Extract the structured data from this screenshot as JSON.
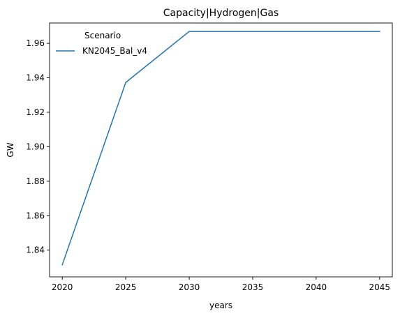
{
  "chart_data": {
    "type": "line",
    "title": "Capacity|Hydrogen|Gas",
    "xlabel": "years",
    "ylabel": "GW",
    "x": [
      2020,
      2025,
      2030,
      2035,
      2040,
      2045
    ],
    "series": [
      {
        "name": "KN2045_Bal_v4",
        "color": "#1f77b4",
        "values": [
          1.8315,
          1.9373,
          1.9669,
          1.9669,
          1.9669,
          1.9669
        ]
      }
    ],
    "xlim": [
      2019,
      2046
    ],
    "ylim": [
      1.8245,
      1.9718
    ],
    "xticks": [
      2020,
      2025,
      2030,
      2035,
      2040,
      2045
    ],
    "yticks": [
      1.84,
      1.86,
      1.88,
      1.9,
      1.92,
      1.94,
      1.96
    ],
    "ytick_labels": [
      "1.84",
      "1.86",
      "1.88",
      "1.90",
      "1.92",
      "1.94",
      "1.96"
    ],
    "legend": {
      "title": "Scenario",
      "position": "top-left",
      "frame": false
    },
    "grid": false
  }
}
